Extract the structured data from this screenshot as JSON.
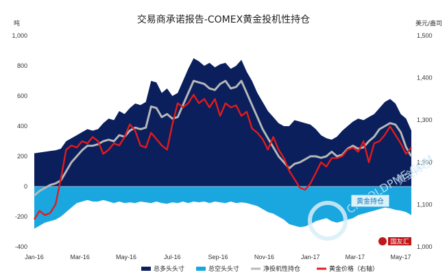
{
  "chart_data": {
    "type": "area",
    "title": "交易商承诺报告-COMEX黄金投机性持仓",
    "left_unit": "吨",
    "right_unit": "美元/盎司",
    "y_left": {
      "min": -400,
      "max": 1000,
      "ticks": [
        "1,000",
        "800",
        "600",
        "400",
        "200",
        "0",
        "-200",
        "-400"
      ]
    },
    "y_right": {
      "min": 1000,
      "max": 1500,
      "ticks": [
        "1,500",
        "1,400",
        "1,300",
        "1,200",
        "1,100",
        "1,000"
      ]
    },
    "x_ticks": [
      "Jan-16",
      "Mar-16",
      "May-16",
      "Jul-16",
      "Sep-16",
      "Nov-16",
      "Jan-17",
      "Mar-17",
      "May-17"
    ],
    "x_tick_weeks": [
      0,
      8.6,
      17.3,
      26,
      34.6,
      43.3,
      52,
      60.4,
      69
    ],
    "legend": [
      "总多头头寸",
      "总空头头寸",
      "净投机性持仓",
      "黄金价格（右轴）"
    ],
    "colors": {
      "long": "#0a1f5c",
      "short": "#1aa7e0",
      "net": "#b8b8b8",
      "price": "#e41a1c"
    },
    "series": {
      "total_long": [
        220,
        225,
        230,
        235,
        240,
        250,
        300,
        320,
        340,
        360,
        380,
        370,
        380,
        420,
        450,
        440,
        500,
        480,
        520,
        550,
        540,
        560,
        700,
        690,
        620,
        650,
        600,
        620,
        700,
        780,
        850,
        830,
        800,
        820,
        790,
        810,
        820,
        780,
        800,
        840,
        760,
        700,
        620,
        560,
        500,
        460,
        420,
        400,
        400,
        440,
        430,
        420,
        410,
        380,
        340,
        320,
        310,
        330,
        370,
        400,
        430,
        450,
        440,
        460,
        480,
        520,
        560,
        580,
        550,
        480,
        450,
        370
      ],
      "total_short": [
        -280,
        -260,
        -240,
        -230,
        -220,
        -200,
        -170,
        -140,
        -110,
        -100,
        -90,
        -100,
        -100,
        -90,
        -100,
        -110,
        -100,
        -110,
        -105,
        -110,
        -100,
        -105,
        -110,
        -100,
        -110,
        -115,
        -105,
        -110,
        -100,
        -110,
        -100,
        -105,
        -100,
        -110,
        -100,
        -105,
        -110,
        -100,
        -110,
        -105,
        -110,
        -120,
        -130,
        -150,
        -170,
        -180,
        -200,
        -220,
        -250,
        -260,
        -270,
        -265,
        -250,
        -230,
        -220,
        -210,
        -230,
        -240,
        -230,
        -220,
        -210,
        -190,
        -180,
        -170,
        -160,
        -150,
        -140,
        -145,
        -155,
        -160,
        -170,
        -190
      ],
      "net": [
        -60,
        -30,
        -10,
        10,
        20,
        40,
        100,
        160,
        200,
        240,
        270,
        270,
        280,
        300,
        310,
        300,
        340,
        330,
        370,
        390,
        380,
        390,
        530,
        520,
        460,
        480,
        450,
        460,
        540,
        620,
        700,
        690,
        680,
        650,
        640,
        680,
        700,
        650,
        660,
        700,
        620,
        540,
        460,
        380,
        320,
        260,
        200,
        160,
        120,
        150,
        160,
        180,
        200,
        200,
        190,
        200,
        230,
        200,
        210,
        250,
        270,
        250,
        260,
        300,
        330,
        380,
        400,
        420,
        410,
        360,
        260,
        200
      ],
      "gold_price": [
        1065,
        1085,
        1075,
        1080,
        1100,
        1160,
        1230,
        1240,
        1235,
        1250,
        1245,
        1260,
        1250,
        1220,
        1230,
        1245,
        1240,
        1260,
        1290,
        1275,
        1240,
        1235,
        1270,
        1255,
        1240,
        1230,
        1290,
        1340,
        1330,
        1340,
        1360,
        1340,
        1350,
        1330,
        1350,
        1310,
        1340,
        1330,
        1335,
        1310,
        1320,
        1280,
        1270,
        1255,
        1230,
        1260,
        1230,
        1210,
        1180,
        1160,
        1140,
        1135,
        1150,
        1175,
        1200,
        1190,
        1210,
        1210,
        1215,
        1230,
        1235,
        1225,
        1250,
        1200,
        1245,
        1250,
        1265,
        1285,
        1265,
        1245,
        1220,
        1235
      ]
    }
  },
  "legend_items": [
    {
      "label": "总多头头寸"
    },
    {
      "label": "总空头头寸"
    },
    {
      "label": "净投机性持仓"
    },
    {
      "label": "黄金价格（右轴）"
    }
  ],
  "watermark": {
    "lines": [
      "CNGOLDPME.COM",
      "黄金持仓"
    ],
    "badge": "黄金持仓",
    "logo": "国友汇"
  }
}
